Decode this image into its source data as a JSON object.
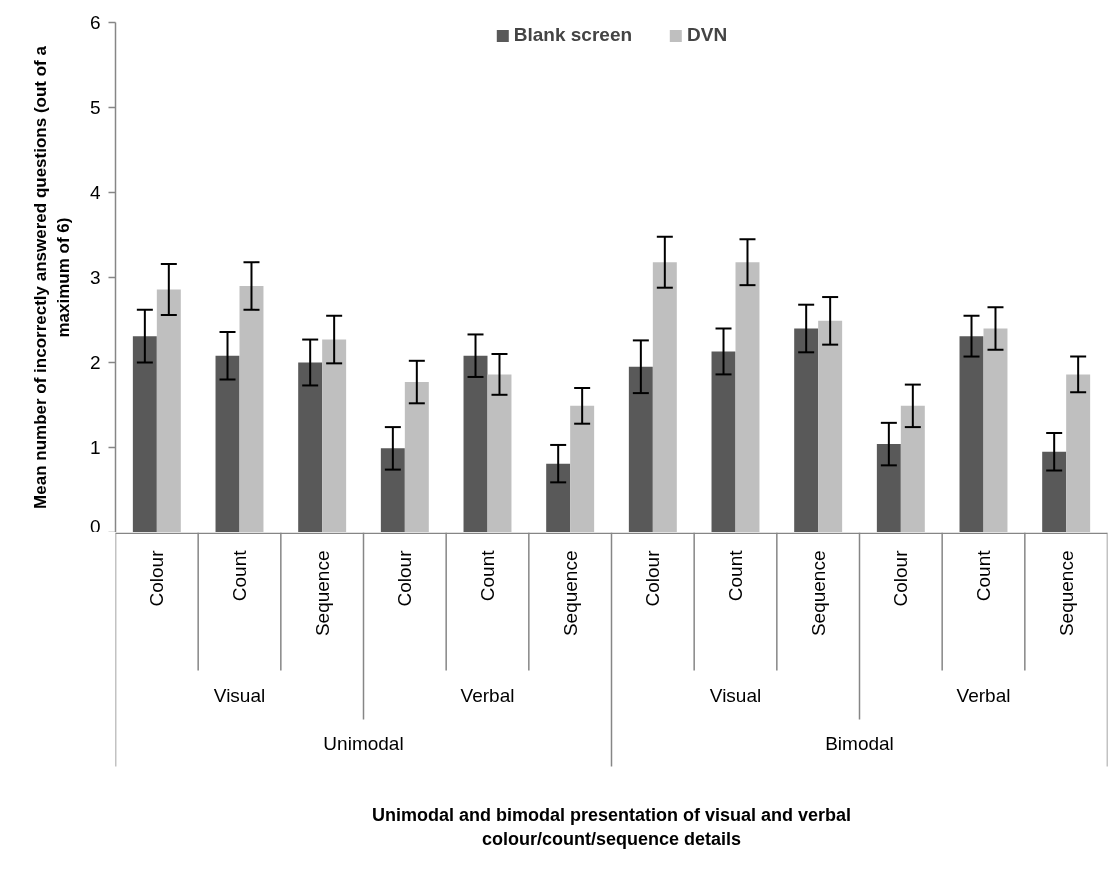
{
  "chart_data": {
    "type": "bar",
    "ylabel": "Mean number of incorrectly answered questions (out of a maximum of 6)",
    "categories": [
      "Colour",
      "Count",
      "Sequence",
      "Colour",
      "Count",
      "Sequence",
      "Colour",
      "Count",
      "Sequence",
      "Colour",
      "Count",
      "Sequence"
    ],
    "annotations": [
      "Visual",
      "Verbal",
      "Visual",
      "Verbal",
      "Unimodal",
      "Bimodal",
      "Unimodal and bimodal presentation of visual and verbal colour/count/sequence details"
    ],
    "series": [
      {
        "name": "Blank screen",
        "color": "#595959",
        "values": [
          2.31,
          2.08,
          2.0,
          0.99,
          2.08,
          0.81,
          1.95,
          2.13,
          2.4,
          1.04,
          2.31,
          0.95
        ],
        "errors": [
          0.31,
          0.28,
          0.27,
          0.25,
          0.25,
          0.22,
          0.31,
          0.27,
          0.28,
          0.25,
          0.24,
          0.22
        ]
      },
      {
        "name": "DVN",
        "color": "#bfbfbf",
        "values": [
          2.86,
          2.9,
          2.27,
          1.77,
          1.86,
          1.49,
          3.18,
          3.18,
          2.49,
          1.49,
          2.4,
          1.86
        ],
        "errors": [
          0.3,
          0.28,
          0.28,
          0.25,
          0.24,
          0.21,
          0.3,
          0.27,
          0.28,
          0.25,
          0.25,
          0.21
        ]
      }
    ],
    "ylim": [
      0,
      6
    ],
    "yticks": [
      0,
      1,
      2,
      3,
      4,
      5,
      6
    ],
    "legend": "top"
  }
}
